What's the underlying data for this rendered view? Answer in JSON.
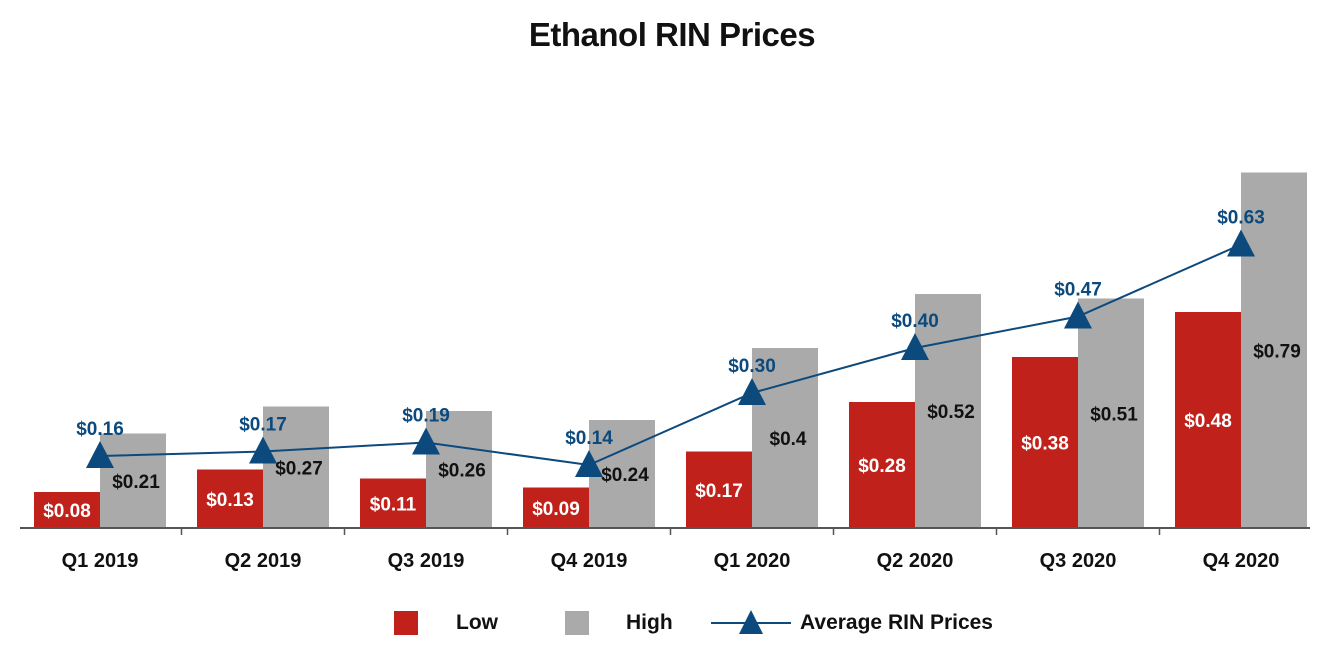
{
  "chart_data": {
    "type": "bar",
    "title": "Ethanol RIN Prices",
    "categories": [
      "Q1 2019",
      "Q2 2019",
      "Q3 2019",
      "Q4 2019",
      "Q1 2020",
      "Q2 2020",
      "Q3 2020",
      "Q4 2020"
    ],
    "series": [
      {
        "name": "Low",
        "type": "bar",
        "color": "#c0211a",
        "values": [
          0.08,
          0.13,
          0.11,
          0.09,
          0.17,
          0.28,
          0.38,
          0.48
        ],
        "labels": [
          "$0.08",
          "$0.13",
          "$0.11",
          "$0.09",
          "$0.17",
          "$0.28",
          "$0.38",
          "$0.48"
        ]
      },
      {
        "name": "High",
        "type": "bar",
        "color": "#aaaaaa",
        "values": [
          0.21,
          0.27,
          0.26,
          0.24,
          0.4,
          0.52,
          0.51,
          0.79
        ],
        "labels": [
          "$0.21",
          "$0.27",
          "$0.26",
          "$0.24",
          "$0.4",
          "$0.52",
          "$0.51",
          "$0.79"
        ]
      },
      {
        "name": "Average RIN Prices",
        "type": "line",
        "color": "#0c4a7e",
        "values": [
          0.16,
          0.17,
          0.19,
          0.14,
          0.3,
          0.4,
          0.47,
          0.63
        ],
        "labels": [
          "$0.16",
          "$0.17",
          "$0.19",
          "$0.14",
          "$0.30",
          "$0.40",
          "$0.47",
          "$0.63"
        ]
      }
    ],
    "ylim": [
      0,
      0.8
    ],
    "xlabel": "",
    "ylabel": "",
    "grid": false,
    "legend_position": "bottom"
  }
}
